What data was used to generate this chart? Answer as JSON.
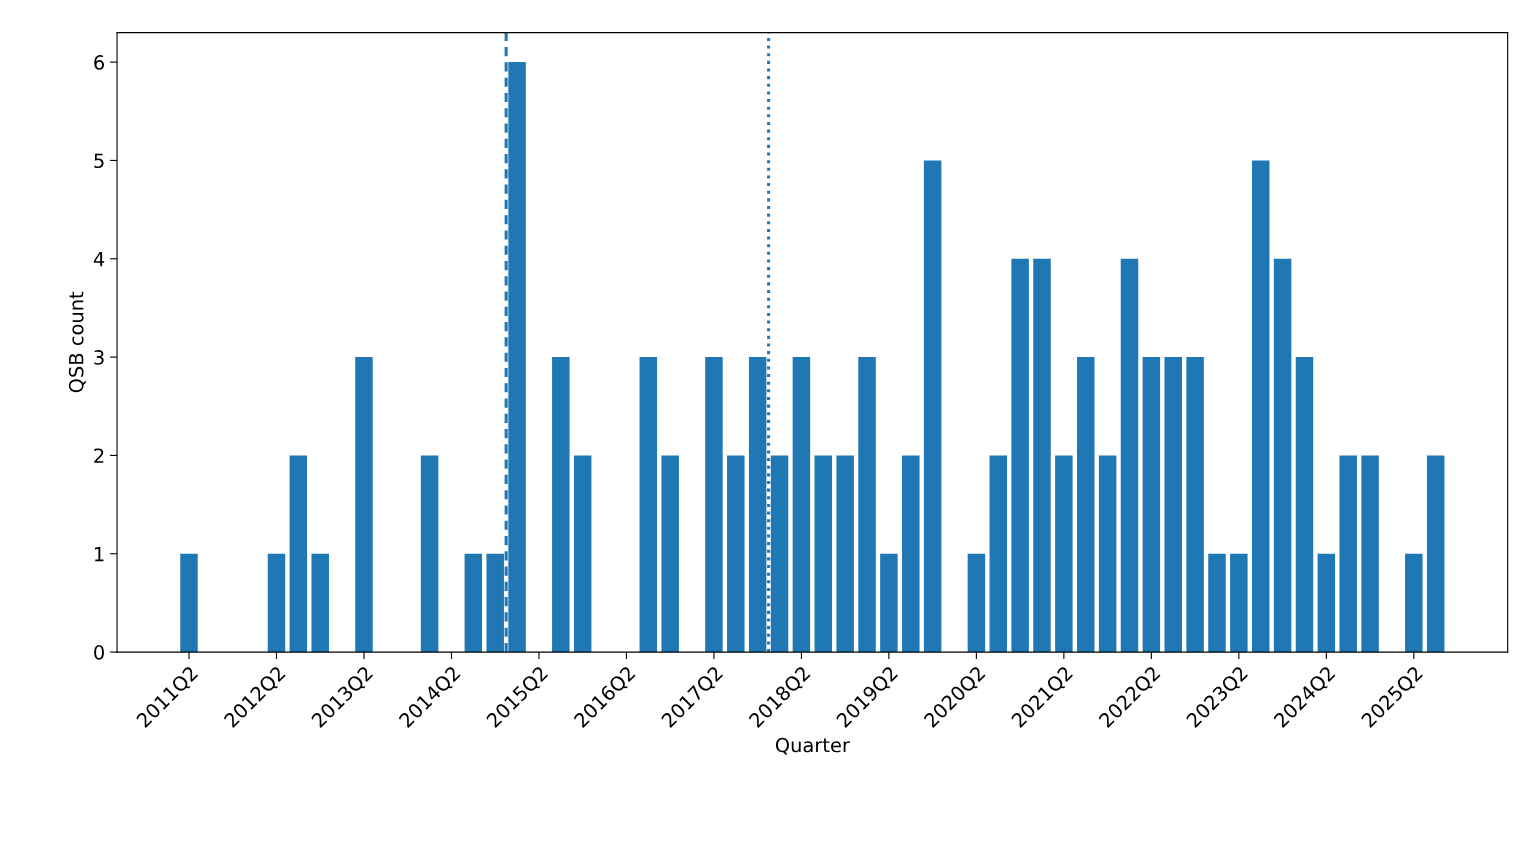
{
  "chart_data": {
    "type": "bar",
    "xlabel": "Quarter",
    "ylabel": "QSB count",
    "categories": [
      "2011Q2",
      null,
      null,
      null,
      "2012Q2",
      null,
      null,
      null,
      "2013Q2",
      null,
      null,
      null,
      "2014Q2",
      null,
      null,
      null,
      "2015Q2",
      null,
      null,
      null,
      "2016Q2",
      null,
      null,
      null,
      "2017Q2",
      null,
      null,
      null,
      "2018Q2",
      null,
      null,
      null,
      "2019Q2",
      null,
      null,
      null,
      "2020Q2",
      null,
      null,
      null,
      "2021Q2",
      null,
      null,
      null,
      "2022Q2",
      null,
      null,
      null,
      "2023Q2",
      null,
      null,
      null,
      "2024Q2",
      null,
      null,
      null,
      "2025Q2",
      null
    ],
    "values": [
      1,
      0,
      0,
      0,
      1,
      2,
      1,
      0,
      3,
      0,
      0,
      2,
      0,
      1,
      1,
      6,
      0,
      3,
      2,
      0,
      0,
      3,
      2,
      0,
      3,
      2,
      3,
      2,
      3,
      2,
      2,
      3,
      1,
      2,
      5,
      0,
      1,
      2,
      4,
      4,
      2,
      3,
      2,
      4,
      3,
      3,
      3,
      1,
      1,
      5,
      4,
      3,
      1,
      2,
      2,
      0,
      1,
      2
    ],
    "color": "#1f77b4",
    "ylim": [
      0,
      6.3
    ],
    "yticks": [
      0,
      1,
      2,
      3,
      4,
      5,
      6
    ],
    "grid": false,
    "legend": false
  }
}
